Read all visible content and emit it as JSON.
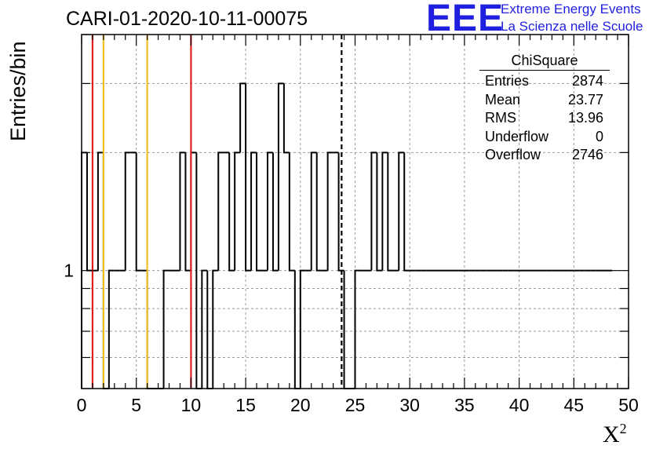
{
  "chart_data": {
    "type": "histogram",
    "title": "CARI-01-2020-10-11-00075",
    "xlabel": "X",
    "xlabel_sup": "2",
    "ylabel": "Entries/bin",
    "xlim": [
      0,
      50
    ],
    "xticks": [
      0,
      5,
      10,
      15,
      20,
      25,
      30,
      35,
      40,
      45,
      50
    ],
    "ylim": [
      0.5,
      4
    ],
    "yscale": "log",
    "yticks": [
      1
    ],
    "grid": true,
    "bin_width": 0.5,
    "counts": [
      2,
      1,
      1,
      2,
      0,
      1,
      1,
      1,
      2,
      2,
      1,
      1,
      0,
      0,
      0,
      1,
      1,
      1,
      2,
      1,
      2,
      0,
      1,
      0,
      1,
      2,
      2,
      1,
      2,
      3,
      1,
      2,
      1,
      1,
      2,
      1,
      3,
      2,
      1,
      0,
      1,
      1,
      2,
      1,
      1,
      2,
      2,
      1,
      0,
      0,
      1,
      1,
      1,
      2,
      1,
      2,
      1,
      1,
      2,
      1,
      1,
      1,
      1,
      1,
      1,
      1,
      1,
      1,
      1,
      1,
      1,
      1,
      1,
      1,
      1,
      1,
      1,
      1,
      1,
      1,
      1,
      1,
      1,
      1,
      1,
      1,
      1,
      1,
      1,
      1,
      1,
      1,
      1,
      1,
      1,
      1,
      1
    ],
    "vertical_lines": [
      {
        "x": 1,
        "color": "#e02020",
        "style": "solid"
      },
      {
        "x": 2,
        "color": "#f0c020",
        "style": "solid"
      },
      {
        "x": 6,
        "color": "#f0c020",
        "style": "solid"
      },
      {
        "x": 10,
        "color": "#e02020",
        "style": "solid"
      },
      {
        "x": 23.77,
        "color": "#000000",
        "style": "dashed"
      }
    ],
    "stats": {
      "name": "ChiSquare",
      "rows": [
        {
          "label": "Entries",
          "value": "2874"
        },
        {
          "label": "Mean",
          "value": "23.77"
        },
        {
          "label": "RMS",
          "value": "13.96"
        },
        {
          "label": "Underflow",
          "value": "0"
        },
        {
          "label": "Overflow",
          "value": "2746"
        }
      ]
    }
  },
  "logo": {
    "mark": "EEE",
    "line1": "Extreme Energy Events",
    "line2": "La Scienza nelle Scuole",
    "color": "#1f1fe0"
  }
}
